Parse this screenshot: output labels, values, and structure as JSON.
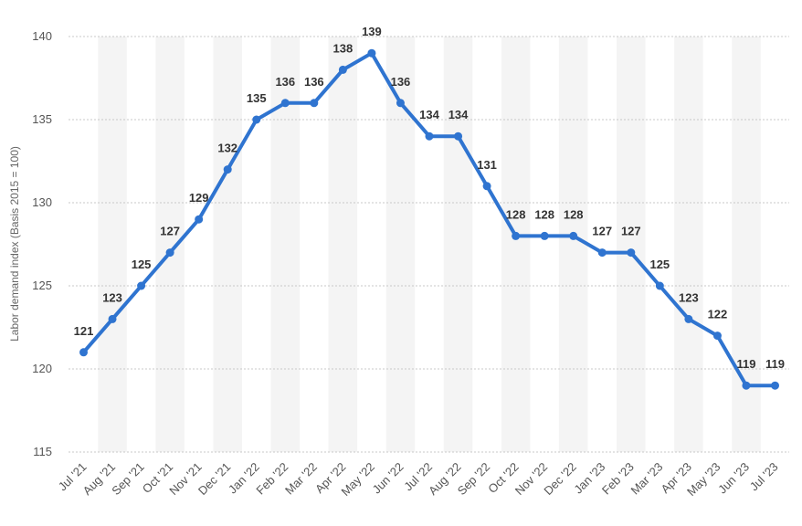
{
  "chart_data": {
    "type": "line",
    "title": "",
    "xlabel": "",
    "ylabel": "Labor demand index (Basis 2015 = 100)",
    "ylim": [
      115,
      140
    ],
    "yticks": [
      115,
      120,
      125,
      130,
      135,
      140
    ],
    "grid": true,
    "categories": [
      "Jul '21",
      "Aug '21",
      "Sep '21",
      "Oct '21",
      "Nov '21",
      "Dec '21",
      "Jan '22",
      "Feb '22",
      "Mar '22",
      "Apr '22",
      "May '22",
      "Jun '22",
      "Jul '22",
      "Aug '22",
      "Sep '22",
      "Oct '22",
      "Nov '22",
      "Dec '22",
      "Jan '23",
      "Feb '23",
      "Mar '23",
      "Apr '23",
      "May '23",
      "Jun '23",
      "Jul '23"
    ],
    "series": [
      {
        "values": [
          121,
          123,
          125,
          127,
          129,
          132,
          135,
          136,
          136,
          138,
          139,
          136,
          134,
          134,
          131,
          128,
          128,
          128,
          127,
          127,
          125,
          123,
          122,
          119,
          119
        ]
      }
    ],
    "colors": {
      "line": "#2f74d0",
      "band": "#f4f4f4",
      "grid": "#c8c8c8"
    }
  }
}
